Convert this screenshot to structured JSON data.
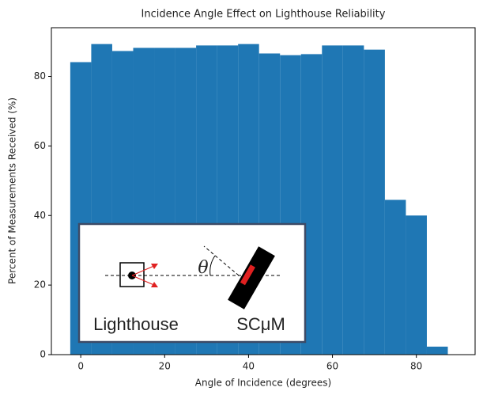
{
  "chart_data": {
    "type": "histogram",
    "title": "Incidence Angle Effect on Lighthouse Reliability",
    "x_label": "Angle of Incidence (degrees)",
    "y_label": "Percent of Measurements Received (%)",
    "bins": [
      -2.5,
      2.5,
      7.5,
      12.5,
      17.5,
      22.5,
      27.5,
      32.5,
      37.5,
      42.5,
      47.5,
      52.5,
      57.5,
      62.5,
      67.5,
      72.5,
      77.5,
      82.5,
      87.5
    ],
    "values": [
      84.1,
      89.3,
      87.3,
      88.2,
      88.2,
      88.2,
      88.9,
      88.9,
      89.3,
      86.6,
      86.1,
      86.4,
      88.9,
      88.9,
      87.7,
      44.5,
      40,
      2.3
    ],
    "color": "#1f77b4",
    "xlim": [
      -7,
      94
    ],
    "xticks": [
      0,
      20,
      40,
      60,
      80
    ],
    "ylim": [
      0,
      94
    ],
    "yticks": [
      0,
      20,
      40,
      60,
      80
    ],
    "grid": false
  },
  "inset": {
    "left_label": "Lighthouse",
    "right_label": "SCμM",
    "angle_label": "θ"
  }
}
